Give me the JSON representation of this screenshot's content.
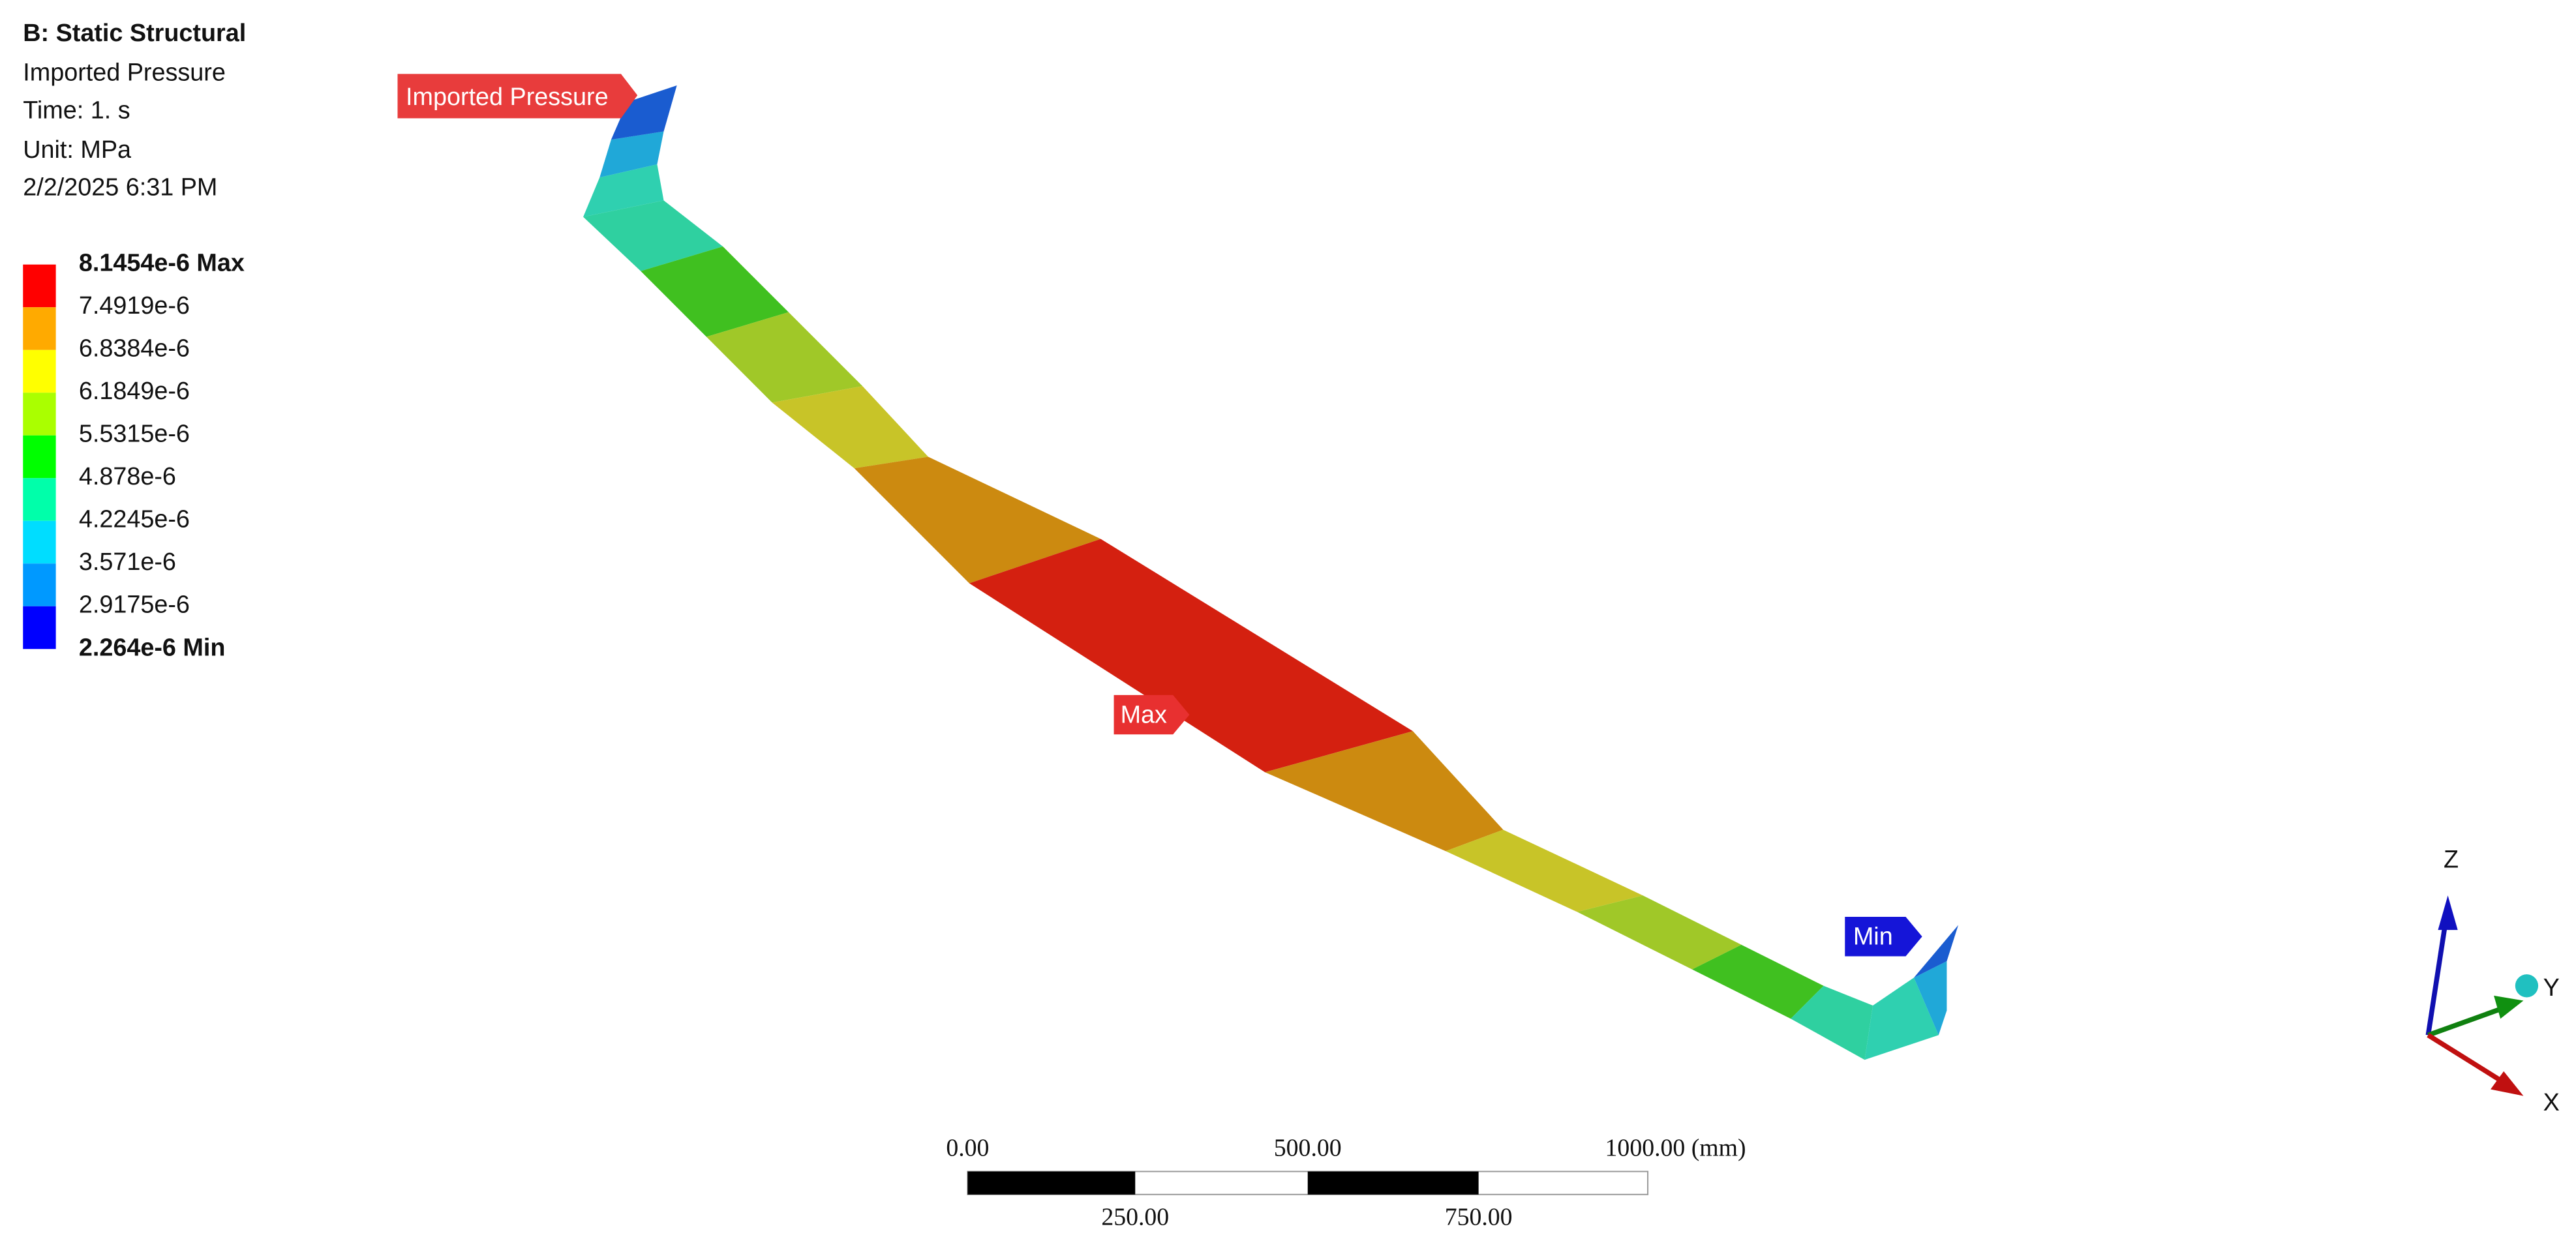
{
  "header": {
    "title": "B: Static Structural",
    "lines": [
      "Imported Pressure",
      "Time: 1. s",
      "Unit: MPa",
      "2/2/2025 6:31 PM"
    ]
  },
  "legend": {
    "labels": [
      "8.1454e-6 Max",
      "7.4919e-6",
      "6.8384e-6",
      "6.1849e-6",
      "5.5315e-6",
      "4.878e-6",
      "4.2245e-6",
      "3.571e-6",
      "2.9175e-6",
      "2.264e-6 Min"
    ],
    "colors": [
      "#ff0000",
      "#ffaa00",
      "#ffff00",
      "#aaff00",
      "#00ff00",
      "#00ffaa",
      "#00ddff",
      "#0099ff",
      "#0000ff"
    ]
  },
  "probes": {
    "load": "Imported Pressure",
    "max": "Max",
    "min": "Min"
  },
  "scale_bar": {
    "top": [
      "0.00",
      "500.00",
      "1000.00 (mm)"
    ],
    "bottom": [
      "250.00",
      "750.00"
    ]
  },
  "triad": {
    "z": "Z",
    "y": "Y",
    "x": "X"
  }
}
